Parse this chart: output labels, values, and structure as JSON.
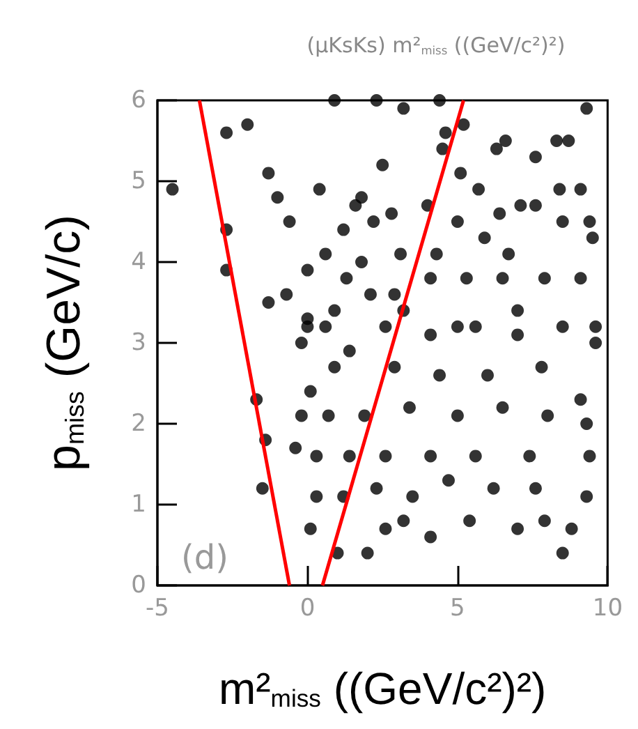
{
  "chart_data": {
    "type": "scatter",
    "title": "(μKsKs) m²$_{miss}$ ((GeV/c²)²)",
    "xlabel": "m²$_{miss}$ ((GeV/c²)²)",
    "ylabel": "p$_{miss}$ (GeV/c)",
    "annotations": [
      "(d)"
    ],
    "xlim": [
      -5,
      10
    ],
    "xticks": [
      -5,
      0,
      5,
      10
    ],
    "ylim": [
      0,
      6
    ],
    "yticks": [
      0,
      1,
      2,
      3,
      4,
      5,
      6
    ],
    "grid": false,
    "line_style": "solid",
    "series": [
      {
        "marker": "circle",
        "color": "#000000",
        "x": [
          -4.5,
          -2.7,
          -2.0,
          0.9,
          2.3,
          3.2,
          4.4,
          9.3,
          -1.3,
          -1.0,
          0.4,
          -0.6,
          2.5,
          4.6,
          5.2,
          4.5,
          6.6,
          6.3,
          8.3,
          8.7,
          7.6,
          5.1,
          5.7,
          8.4,
          9.1,
          1.8,
          1.6,
          2.8,
          4.0,
          7.1,
          7.6,
          6.4,
          9.4,
          1.2,
          2.2,
          5.0,
          5.9,
          8.5,
          9.5,
          0.6,
          1.8,
          3.1,
          4.3,
          6.7,
          0.0,
          -1.3,
          -0.7,
          1.3,
          2.1,
          2.9,
          4.1,
          5.3,
          6.5,
          7.9,
          9.1,
          0.9,
          5.0,
          0.0,
          -2.7,
          -2.7,
          3.2,
          7.0,
          9.6,
          0.0,
          -0.2,
          0.6,
          -1.7,
          0.1,
          -0.2,
          -0.4,
          -1.4,
          -1.5,
          0.9,
          1.4,
          2.6,
          4.1,
          5.6,
          7.0,
          8.5,
          9.6,
          2.9,
          4.4,
          6.0,
          7.8,
          9.1,
          0.7,
          1.9,
          3.4,
          5.0,
          6.5,
          8.0,
          9.3,
          0.3,
          1.4,
          2.6,
          4.1,
          5.6,
          7.4,
          9.4,
          0.3,
          1.2,
          2.3,
          3.5,
          4.7,
          6.2,
          7.6,
          9.3,
          0.1,
          1.0,
          2.0,
          2.6,
          4.1,
          5.4,
          7.0,
          8.5,
          8.8,
          7.9,
          3.2
        ],
        "values": [
          4.9,
          5.6,
          5.7,
          6.0,
          6.0,
          5.9,
          6.0,
          5.9,
          5.1,
          4.8,
          4.9,
          4.5,
          5.2,
          5.6,
          5.7,
          5.4,
          5.5,
          5.4,
          5.5,
          5.5,
          5.3,
          5.1,
          4.9,
          4.9,
          4.9,
          4.8,
          4.7,
          4.6,
          4.7,
          4.7,
          4.7,
          4.6,
          4.5,
          4.4,
          4.5,
          4.5,
          4.3,
          4.5,
          4.3,
          4.1,
          4.0,
          4.1,
          4.1,
          4.1,
          3.9,
          3.5,
          3.6,
          3.8,
          3.6,
          3.6,
          3.8,
          3.8,
          3.8,
          3.8,
          3.8,
          3.4,
          3.2,
          3.2,
          3.9,
          4.4,
          3.4,
          3.4,
          3.2,
          3.3,
          3.0,
          3.2,
          2.3,
          2.4,
          2.1,
          1.7,
          1.8,
          1.2,
          2.7,
          2.9,
          3.2,
          3.1,
          3.2,
          3.1,
          3.2,
          3.0,
          2.7,
          2.6,
          2.6,
          2.7,
          2.3,
          2.1,
          2.1,
          2.2,
          2.1,
          2.2,
          2.1,
          2.0,
          1.6,
          1.6,
          1.6,
          1.6,
          1.6,
          1.6,
          1.6,
          1.1,
          1.1,
          1.2,
          1.1,
          1.3,
          1.2,
          1.2,
          1.1,
          0.7,
          0.4,
          0.4,
          0.7,
          0.6,
          0.8,
          0.7,
          0.4,
          0.7,
          0.8,
          0.8
        ]
      },
      {
        "type": "line",
        "marker": "none",
        "color": "#ff0000",
        "x": [
          -3.6,
          -0.6
        ],
        "values": [
          6,
          0
        ]
      },
      {
        "type": "line",
        "marker": "none",
        "color": "#ff0000",
        "x": [
          5.2,
          0.5
        ],
        "values": [
          6,
          0
        ]
      }
    ]
  }
}
